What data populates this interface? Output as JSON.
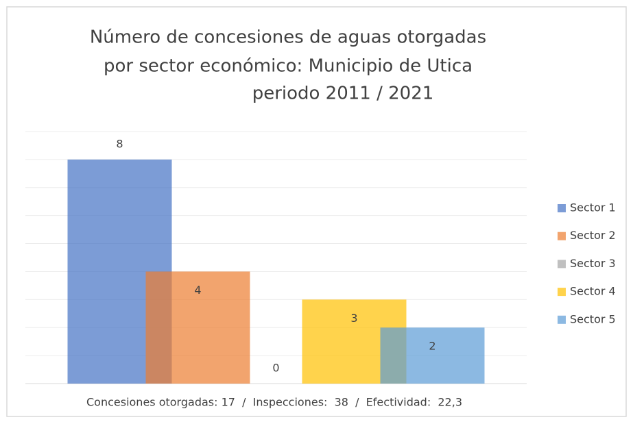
{
  "chart_data": {
    "type": "bar",
    "title": [
      "Número de concesiones de aguas otorgadas",
      "por sector económico: Municipio de Utica",
      "periodo 2011 / 2021"
    ],
    "categories": [
      "Concesiones otorgadas: 17  /  Inspecciones:  38  /  Efectividad:  22,3"
    ],
    "series": [
      {
        "name": "Sector 1",
        "color": "#4472c4",
        "values": [
          8
        ]
      },
      {
        "name": "Sector 2",
        "color": "#ed7d31",
        "values": [
          4
        ]
      },
      {
        "name": "Sector 3",
        "color": "#a5a5a5",
        "values": [
          0
        ]
      },
      {
        "name": "Sector 4",
        "color": "#ffc000",
        "values": [
          3
        ]
      },
      {
        "name": "Sector 5",
        "color": "#5b9bd5",
        "values": [
          2
        ]
      }
    ],
    "ylim": [
      0,
      9
    ],
    "yticks": [
      0,
      1,
      2,
      3,
      4,
      5,
      6,
      7,
      8,
      9
    ],
    "grid": true,
    "legend": "right"
  }
}
